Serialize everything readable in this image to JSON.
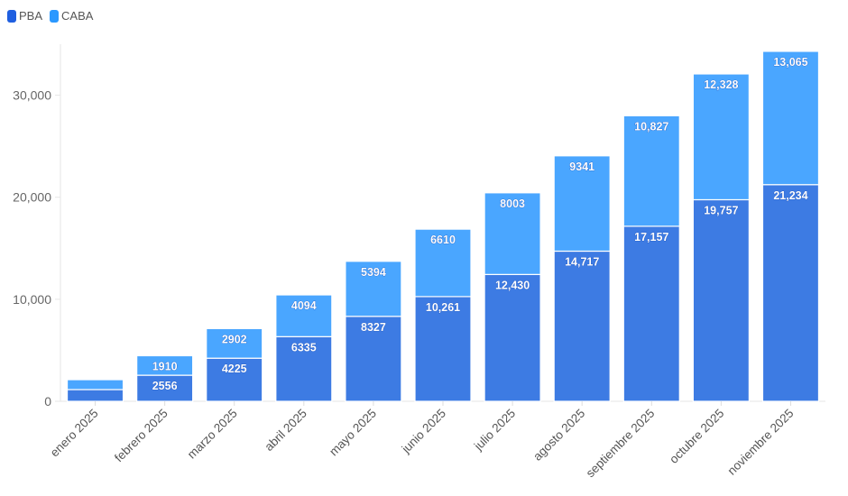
{
  "chart_data": {
    "type": "bar",
    "stacked": true,
    "categories": [
      "enero 2025",
      "febrero 2025",
      "marzo 2025",
      "abril 2025",
      "mayo 2025",
      "junio 2025",
      "julio 2025",
      "agosto 2025",
      "septiembre 2025",
      "octubre 2025",
      "noviembre 2025"
    ],
    "series": [
      {
        "name": "PBA",
        "color": "#3d7be3",
        "legend_color": "#1f5fe0",
        "values": [
          1150,
          2556,
          4225,
          6335,
          8327,
          10261,
          12430,
          14717,
          17157,
          19757,
          21234
        ],
        "labels": [
          "",
          "2556",
          "4225",
          "6335",
          "8327",
          "10,261",
          "12,430",
          "14,717",
          "17,157",
          "19,757",
          "21,234"
        ]
      },
      {
        "name": "CABA",
        "color": "#4aa6ff",
        "legend_color": "#2a98ff",
        "values": [
          970,
          1910,
          2902,
          4094,
          5394,
          6610,
          8003,
          9341,
          10827,
          12328,
          13065
        ],
        "labels": [
          "",
          "1910",
          "2902",
          "4094",
          "5394",
          "6610",
          "8003",
          "9341",
          "10,827",
          "12,328",
          "13,065"
        ]
      }
    ],
    "yticks": [
      0,
      10000,
      20000,
      30000
    ],
    "ytick_labels": [
      "0",
      "10,000",
      "20,000",
      "30,000"
    ],
    "ylim": [
      0,
      35000
    ],
    "legend": "top-left",
    "title": "",
    "xlabel": "",
    "ylabel": ""
  }
}
